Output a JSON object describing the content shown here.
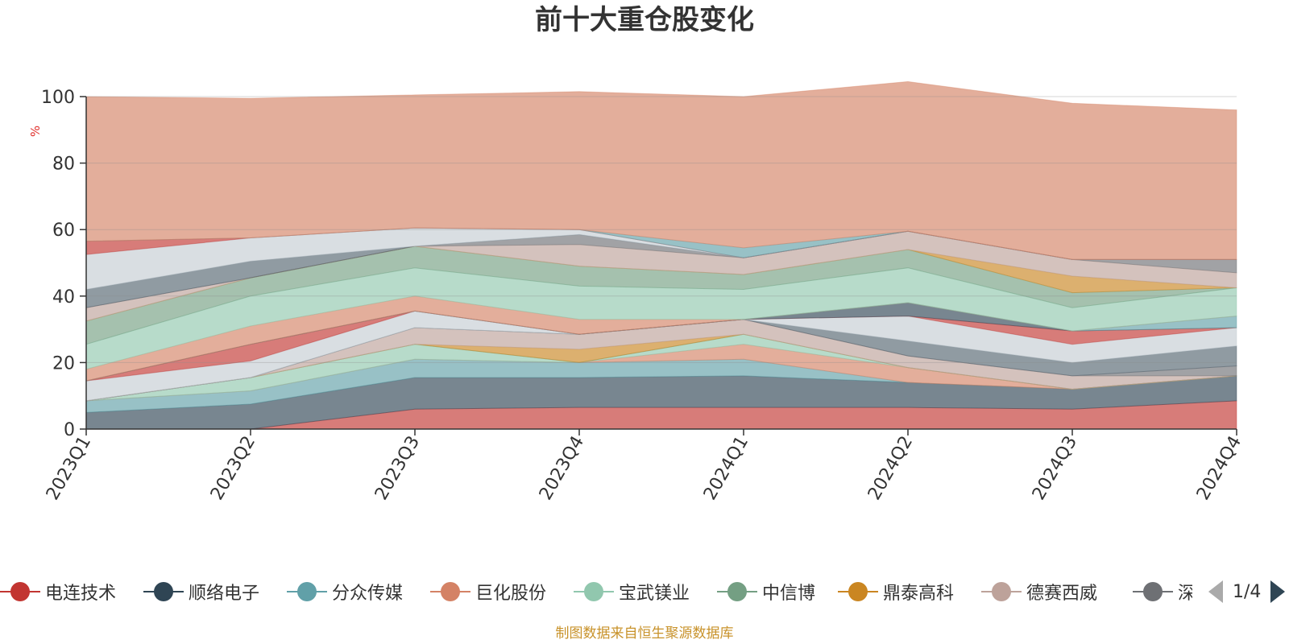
{
  "chart_data": {
    "type": "area",
    "stacked": true,
    "title": "前十大重仓股变化",
    "ylabel": "%",
    "ylim": [
      0,
      100
    ],
    "yticks": [
      "0",
      "20",
      "40",
      "60",
      "80",
      "100"
    ],
    "categories": [
      "2023Q1",
      "2023Q2",
      "2023Q3",
      "2023Q4",
      "2024Q1",
      "2024Q2",
      "2024Q3",
      "2024Q4"
    ],
    "grid": true,
    "legend_position": "bottom",
    "series": [
      {
        "name": "电连技术",
        "color": "#c23531",
        "values": [
          0,
          0,
          6,
          6.5,
          6.5,
          6.5,
          6,
          8.5
        ]
      },
      {
        "name": "顺络电子",
        "color": "#2f4554",
        "values": [
          5,
          7.5,
          9.5,
          9,
          9.5,
          7.5,
          6,
          7.5
        ]
      },
      {
        "name": "分众传媒",
        "color": "#61a0a8",
        "values": [
          3.5,
          4,
          5.5,
          4.5,
          5,
          0,
          0,
          0
        ]
      },
      {
        "name": "巨化股份",
        "color": "#d48265",
        "values": [
          0,
          0,
          0,
          0,
          4.5,
          4.5,
          0,
          0
        ]
      },
      {
        "name": "宝武镁业",
        "color": "#91c7ae",
        "values": [
          0,
          4,
          4.5,
          0,
          3,
          0,
          0,
          0
        ]
      },
      {
        "name": "中信博",
        "color": "#749f83",
        "values": [
          0,
          0,
          0,
          0,
          0,
          0,
          0,
          0
        ]
      },
      {
        "name": "鼎泰高科",
        "color": "#ca8622",
        "values": [
          0,
          0,
          0,
          4,
          0,
          0,
          0,
          0
        ]
      },
      {
        "name": "德赛西威",
        "color": "#bda29a",
        "values": [
          0,
          0,
          5,
          4.5,
          4.5,
          3.5,
          4,
          0
        ]
      },
      {
        "name": "深",
        "color": "#6e7074",
        "values": [
          0,
          0,
          0,
          0,
          0,
          0,
          0,
          3
        ]
      },
      {
        "name": "",
        "color": "#546570",
        "values": [
          0,
          0,
          0,
          0,
          0,
          4.5,
          4,
          6
        ]
      },
      {
        "name": "",
        "color": "#c4ccd3",
        "values": [
          6,
          5,
          5,
          0,
          0,
          7.5,
          5.5,
          5.5
        ]
      },
      {
        "name": "",
        "color": "#c23531",
        "values": [
          0,
          5,
          0,
          0,
          0,
          0,
          4,
          0
        ]
      },
      {
        "name": "",
        "color": "#2f4554",
        "values": [
          0,
          0,
          0,
          0,
          0,
          4,
          0,
          0
        ]
      },
      {
        "name": "",
        "color": "#61a0a8",
        "values": [
          0,
          0,
          0,
          0,
          0,
          0,
          0,
          3.5
        ]
      },
      {
        "name": "",
        "color": "#d48265",
        "values": [
          3.5,
          5.5,
          4.5,
          4.5,
          0,
          0,
          0,
          0
        ]
      },
      {
        "name": "",
        "color": "#91c7ae",
        "values": [
          7.5,
          9,
          8.5,
          10,
          9,
          10.5,
          7,
          8.5
        ]
      },
      {
        "name": "",
        "color": "#749f83",
        "values": [
          7,
          5.5,
          6.5,
          6,
          4.5,
          5.5,
          4.5,
          0
        ]
      },
      {
        "name": "",
        "color": "#ca8622",
        "values": [
          0,
          0,
          0,
          0,
          0,
          0,
          5,
          0
        ]
      },
      {
        "name": "",
        "color": "#bda29a",
        "values": [
          4,
          0,
          0,
          6.5,
          5,
          5.5,
          5,
          4.5
        ]
      },
      {
        "name": "",
        "color": "#6e7074",
        "values": [
          0,
          0,
          0,
          3,
          0,
          0,
          0,
          4
        ]
      },
      {
        "name": "",
        "color": "#546570",
        "values": [
          5.5,
          5,
          0,
          0,
          0,
          0,
          0,
          0
        ]
      },
      {
        "name": "",
        "color": "#c4ccd3",
        "values": [
          10.5,
          7,
          5.5,
          1.5,
          0,
          0,
          0,
          0
        ]
      },
      {
        "name": "",
        "color": "#c23531",
        "values": [
          4,
          0,
          0,
          0,
          0,
          0,
          0,
          0
        ]
      },
      {
        "name": "",
        "color": "#61a0a8",
        "values": [
          0,
          0,
          0,
          0,
          3,
          0,
          0,
          0
        ]
      },
      {
        "name": "",
        "color": "#d48265",
        "values": [
          43.5,
          42,
          40,
          41.5,
          45.5,
          45,
          47,
          45
        ]
      }
    ]
  },
  "legend": {
    "items": [
      {
        "name": "电连技术",
        "color": "#c23531"
      },
      {
        "name": "顺络电子",
        "color": "#2f4554"
      },
      {
        "name": "分众传媒",
        "color": "#61a0a8"
      },
      {
        "name": "巨化股份",
        "color": "#d48265"
      },
      {
        "name": "宝武镁业",
        "color": "#91c7ae"
      },
      {
        "name": "中信博",
        "color": "#749f83"
      },
      {
        "name": "鼎泰高科",
        "color": "#ca8622"
      },
      {
        "name": "德赛西威",
        "color": "#bda29a"
      },
      {
        "name": "深",
        "color": "#6e7074"
      }
    ],
    "page_text": "1/4"
  },
  "source": "制图数据来自恒生聚源数据库"
}
